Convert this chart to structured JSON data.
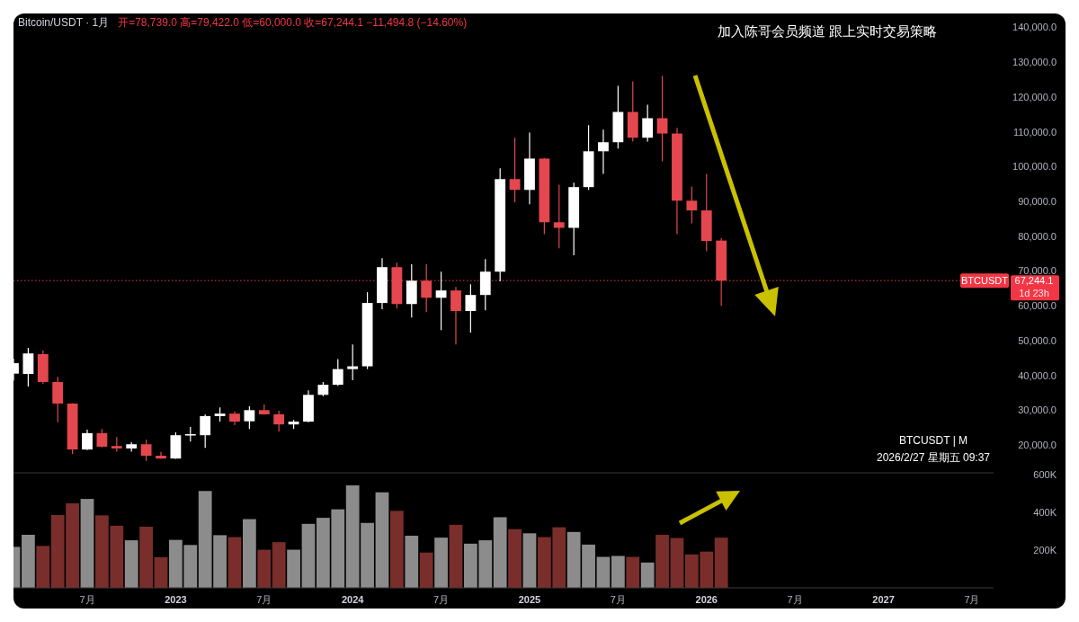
{
  "chart_data": [
    {
      "type": "candlestick",
      "title": "Bitcoin/USDT · 1月",
      "subtitle": "开=78,739.0 高=79,422.0 低=60,000.0 收=67,244.1 −11,494.8 (−14.60%)",
      "annotations": [
        "加入陈哥会员频道  跟上实时交易策略",
        "BTCUSDT | M",
        "2026/2/27 星期五 09:37",
        "67,244.1",
        "1d 23h"
      ],
      "x": [
        "2022-02",
        "2022-03",
        "2022-04",
        "2022-05",
        "2022-06",
        "2022-07",
        "2022-08",
        "2022-09",
        "2022-10",
        "2022-11",
        "2022-12",
        "2023-01",
        "2023-02",
        "2023-03",
        "2023-04",
        "2023-05",
        "2023-06",
        "2023-07",
        "2023-08",
        "2023-09",
        "2023-10",
        "2023-11",
        "2023-12",
        "2024-01",
        "2024-02",
        "2024-03",
        "2024-04",
        "2024-05",
        "2024-06",
        "2024-07",
        "2024-08",
        "2024-09",
        "2024-10",
        "2024-11",
        "2024-12",
        "2025-01",
        "2025-02",
        "2025-03",
        "2025-04",
        "2025-05",
        "2025-06",
        "2025-07",
        "2025-08",
        "2025-09",
        "2025-10",
        "2025-11",
        "2025-12",
        "2026-01",
        "2026-02"
      ],
      "ohlc": [
        [
          40500,
          44800,
          38500,
          43500
        ],
        [
          40400,
          47900,
          36800,
          46300
        ],
        [
          46100,
          47100,
          37600,
          38100
        ],
        [
          38100,
          39600,
          26500,
          31900
        ],
        [
          31900,
          32000,
          17400,
          18700
        ],
        [
          18700,
          24400,
          18500,
          23400
        ],
        [
          23400,
          24600,
          19300,
          19500
        ],
        [
          19700,
          22300,
          18100,
          19000
        ],
        [
          19000,
          20800,
          18100,
          20200
        ],
        [
          20200,
          21500,
          15400,
          16900
        ],
        [
          16900,
          18000,
          16000,
          16100
        ],
        [
          16100,
          23600,
          16000,
          22800
        ],
        [
          22800,
          25200,
          21000,
          23100
        ],
        [
          22800,
          28800,
          19200,
          28300
        ],
        [
          28300,
          30800,
          26700,
          29000
        ],
        [
          29000,
          29600,
          25700,
          26700
        ],
        [
          26800,
          31100,
          24600,
          30000
        ],
        [
          30000,
          31600,
          28700,
          28800
        ],
        [
          28800,
          29800,
          23900,
          25900
        ],
        [
          25900,
          27200,
          24600,
          26700
        ],
        [
          26700,
          35700,
          26500,
          34400
        ],
        [
          34400,
          38100,
          34000,
          37300
        ],
        [
          37300,
          44700,
          37000,
          41800
        ],
        [
          41800,
          48900,
          38600,
          42600
        ],
        [
          42600,
          63900,
          41800,
          60800
        ],
        [
          60800,
          73700,
          59000,
          71100
        ],
        [
          71100,
          72400,
          59200,
          60500
        ],
        [
          60500,
          71900,
          56600,
          67200
        ],
        [
          67200,
          71900,
          58200,
          62300
        ],
        [
          62300,
          69800,
          53000,
          64400
        ],
        [
          64400,
          65400,
          48900,
          58500
        ],
        [
          58500,
          66200,
          52300,
          63100
        ],
        [
          63100,
          73400,
          58700,
          69800
        ],
        [
          69800,
          99500,
          67000,
          96400
        ],
        [
          96400,
          108300,
          89700,
          93300
        ],
        [
          93300,
          109800,
          89200,
          102300
        ],
        [
          102300,
          102500,
          80600,
          84000
        ],
        [
          84000,
          94800,
          76500,
          82400
        ],
        [
          82400,
          95400,
          74500,
          94100
        ],
        [
          94100,
          111900,
          93300,
          104400
        ],
        [
          104400,
          110600,
          97900,
          107000
        ],
        [
          107000,
          123200,
          105200,
          115700
        ],
        [
          115700,
          124500,
          107200,
          108300
        ],
        [
          108300,
          117800,
          107200,
          113900
        ],
        [
          113900,
          126100,
          101500,
          109500
        ],
        [
          109500,
          111100,
          80600,
          90200
        ],
        [
          90200,
          94300,
          83700,
          87400
        ],
        [
          87400,
          97900,
          75700,
          78600
        ],
        [
          78739,
          79422,
          60000,
          67244.1
        ]
      ],
      "colors": [
        "#ffffff",
        "#ffffff",
        "#e5474f",
        "#e5474f",
        "#e5474f",
        "#ffffff",
        "#e5474f",
        "#e5474f",
        "#ffffff",
        "#e5474f",
        "#e5474f",
        "#ffffff",
        "#ffffff",
        "#ffffff",
        "#ffffff",
        "#e5474f",
        "#ffffff",
        "#e5474f",
        "#e5474f",
        "#ffffff",
        "#ffffff",
        "#ffffff",
        "#ffffff",
        "#ffffff",
        "#ffffff",
        "#ffffff",
        "#e5474f",
        "#ffffff",
        "#e5474f",
        "#ffffff",
        "#e5474f",
        "#ffffff",
        "#ffffff",
        "#ffffff",
        "#e5474f",
        "#ffffff",
        "#e5474f",
        "#e5474f",
        "#ffffff",
        "#ffffff",
        "#ffffff",
        "#ffffff",
        "#e5474f",
        "#ffffff",
        "#e5474f",
        "#e5474f",
        "#e5474f",
        "#e5474f",
        "#e5474f"
      ],
      "xlim": [
        "2022-02",
        "2027-08-15"
      ],
      "ylim": [
        12000,
        144000
      ],
      "yticks": [
        {
          "value": 20000,
          "label": "20,000.0"
        },
        {
          "value": 30000,
          "label": "30,000.0"
        },
        {
          "value": 40000,
          "label": "40,000.0"
        },
        {
          "value": 50000,
          "label": "50,000.0"
        },
        {
          "value": 60000,
          "label": "60,000.0"
        },
        {
          "value": 70000,
          "label": "70,000.0"
        },
        {
          "value": 80000,
          "label": "80,000.0"
        },
        {
          "value": 90000,
          "label": "90,000.0"
        },
        {
          "value": 100000,
          "label": "100,000.0"
        },
        {
          "value": 110000,
          "label": "110,000.0"
        },
        {
          "value": 120000,
          "label": "120,000.0"
        },
        {
          "value": 130000,
          "label": "130,000.0"
        },
        {
          "value": 140000,
          "label": "140,000.0"
        }
      ],
      "tick_labels": "y",
      "ref_lines": [
        {
          "axis": "y",
          "value": 67244.1,
          "label": "BTCUSDT",
          "color": "#f23645",
          "line_style": "dotted"
        }
      ]
    },
    {
      "type": "bar",
      "x": [
        "2022-02",
        "2022-03",
        "2022-04",
        "2022-05",
        "2022-06",
        "2022-07",
        "2022-08",
        "2022-09",
        "2022-10",
        "2022-11",
        "2022-12",
        "2023-01",
        "2023-02",
        "2023-03",
        "2023-04",
        "2023-05",
        "2023-06",
        "2023-07",
        "2023-08",
        "2023-09",
        "2023-10",
        "2023-11",
        "2023-12",
        "2024-01",
        "2024-02",
        "2024-03",
        "2024-04",
        "2024-05",
        "2024-06",
        "2024-07",
        "2024-08",
        "2024-09",
        "2024-10",
        "2024-11",
        "2024-12",
        "2025-01",
        "2025-02",
        "2025-03",
        "2025-04",
        "2025-05",
        "2025-06",
        "2025-07",
        "2025-08",
        "2025-09",
        "2025-10",
        "2025-11",
        "2025-12",
        "2026-01",
        "2026-02"
      ],
      "values": [
        217000,
        281000,
        222000,
        386000,
        448000,
        471000,
        384000,
        329000,
        252000,
        324000,
        162000,
        254000,
        227000,
        513000,
        279000,
        269000,
        364000,
        202000,
        242000,
        202000,
        339000,
        371000,
        416000,
        543000,
        344000,
        506000,
        408000,
        276000,
        187000,
        266000,
        334000,
        234000,
        252000,
        374000,
        311000,
        289000,
        269000,
        321000,
        296000,
        229000,
        164000,
        169000,
        164000,
        134000,
        281000,
        264000,
        177000,
        192000,
        266000
      ],
      "colors": [
        "#8c8c8c",
        "#8c8c8c",
        "#7a2e2b",
        "#7a2e2b",
        "#7a2e2b",
        "#8c8c8c",
        "#7a2e2b",
        "#7a2e2b",
        "#8c8c8c",
        "#7a2e2b",
        "#7a2e2b",
        "#8c8c8c",
        "#8c8c8c",
        "#8c8c8c",
        "#8c8c8c",
        "#7a2e2b",
        "#8c8c8c",
        "#7a2e2b",
        "#7a2e2b",
        "#8c8c8c",
        "#8c8c8c",
        "#8c8c8c",
        "#8c8c8c",
        "#8c8c8c",
        "#8c8c8c",
        "#8c8c8c",
        "#7a2e2b",
        "#8c8c8c",
        "#7a2e2b",
        "#8c8c8c",
        "#7a2e2b",
        "#8c8c8c",
        "#8c8c8c",
        "#8c8c8c",
        "#7a2e2b",
        "#8c8c8c",
        "#7a2e2b",
        "#7a2e2b",
        "#8c8c8c",
        "#8c8c8c",
        "#8c8c8c",
        "#8c8c8c",
        "#7a2e2b",
        "#8c8c8c",
        "#7a2e2b",
        "#7a2e2b",
        "#7a2e2b",
        "#7a2e2b",
        "#7a2e2b"
      ],
      "xlim": [
        "2022-02",
        "2027-08-15"
      ],
      "ylim": [
        0,
        600000
      ],
      "yticks": [
        {
          "value": 200000,
          "label": "200K"
        },
        {
          "value": 400000,
          "label": "400K"
        },
        {
          "value": 600000,
          "label": "600K"
        }
      ],
      "xticks": [
        {
          "value": "2022-07",
          "label": "7月"
        },
        {
          "value": "2023-01",
          "label": "2023"
        },
        {
          "value": "2023-07",
          "label": "7月"
        },
        {
          "value": "2024-01",
          "label": "2024"
        },
        {
          "value": "2024-07",
          "label": "7月"
        },
        {
          "value": "2025-01",
          "label": "2025"
        },
        {
          "value": "2025-07",
          "label": "7月"
        },
        {
          "value": "2026-01",
          "label": "2026"
        },
        {
          "value": "2026-07",
          "label": "7月"
        },
        {
          "value": "2027-01",
          "label": "2027"
        },
        {
          "value": "2027-07",
          "label": "7月"
        }
      ]
    }
  ]
}
